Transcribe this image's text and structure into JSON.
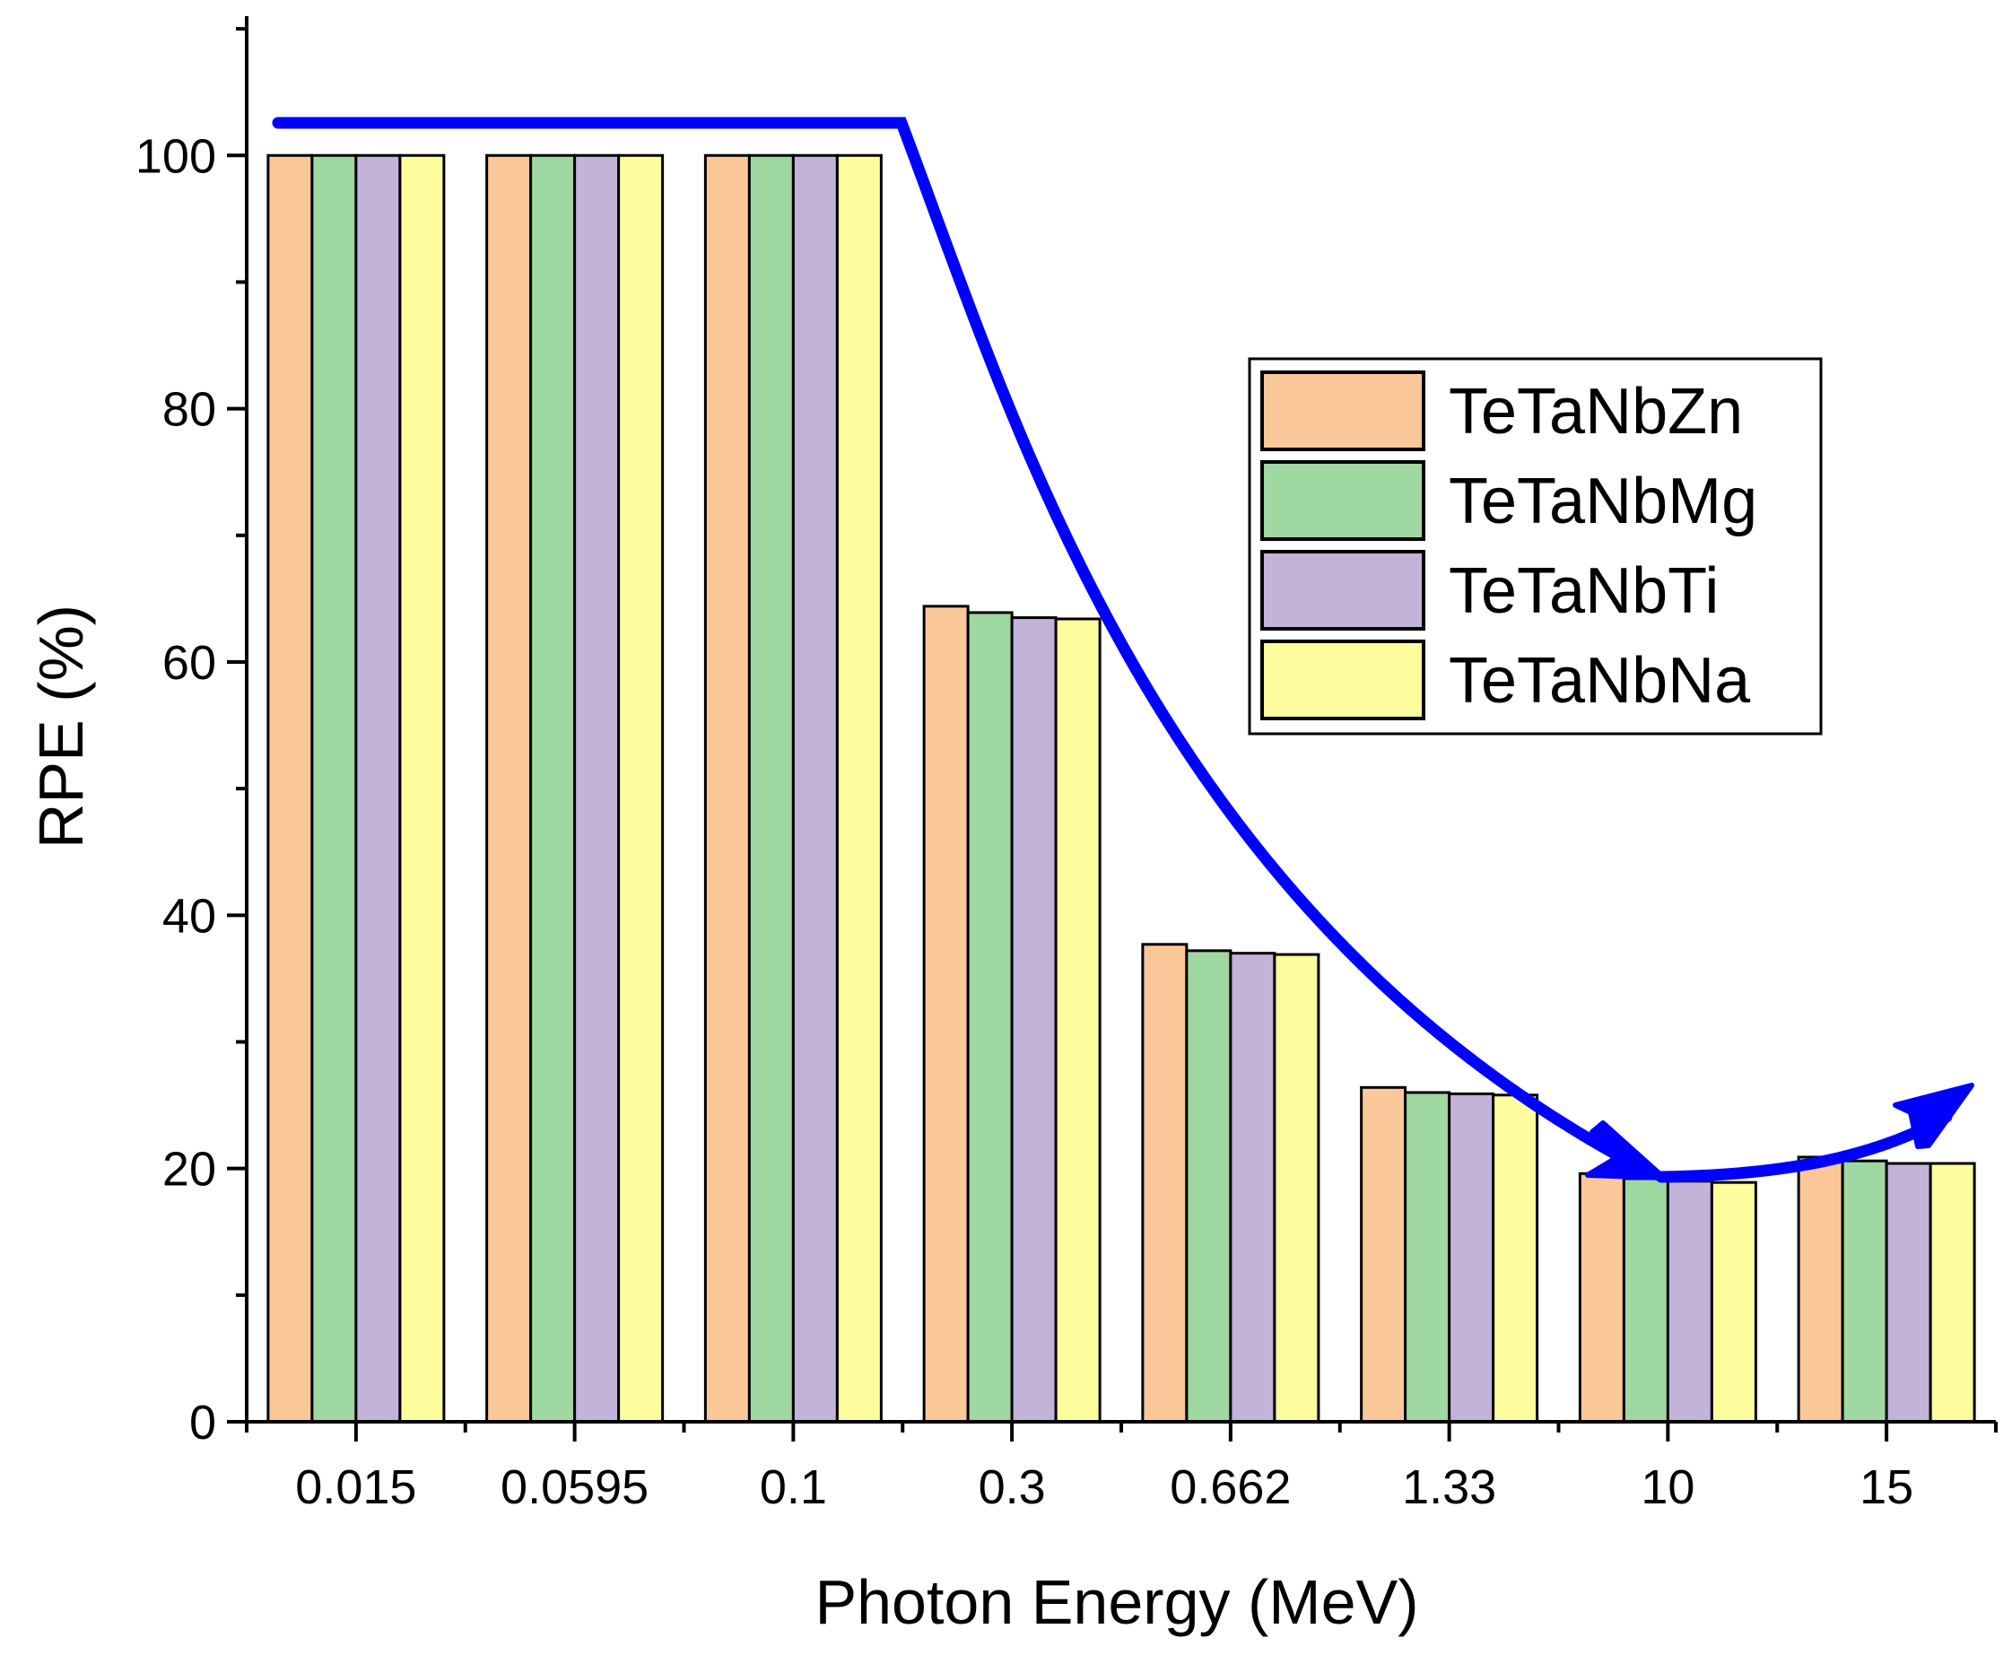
{
  "chart_data": {
    "type": "bar",
    "title": "",
    "xlabel": "Photon Energy (MeV)",
    "ylabel": "RPE (%)",
    "ylim": [
      0,
      111
    ],
    "yticks": [
      0,
      20,
      40,
      60,
      80,
      100
    ],
    "categories": [
      "0.015",
      "0.0595",
      "0.1",
      "0.3",
      "0.662",
      "1.33",
      "10",
      "15"
    ],
    "series": [
      {
        "name": "TeTaNbZn",
        "color": "#FAC898",
        "values": [
          100,
          100,
          100,
          64.4,
          37.7,
          26.4,
          19.6,
          20.9
        ]
      },
      {
        "name": "TeTaNbMg",
        "color": "#9FD8A0",
        "values": [
          100,
          100,
          100,
          63.9,
          37.2,
          26.0,
          19.2,
          20.6
        ]
      },
      {
        "name": "TeTaNbTi",
        "color": "#C3B3D9",
        "values": [
          100,
          100,
          100,
          63.5,
          37.0,
          25.9,
          19.0,
          20.4
        ]
      },
      {
        "name": "TeTaNbNa",
        "color": "#FDFD9D",
        "values": [
          100,
          100,
          100,
          63.4,
          36.9,
          25.8,
          18.9,
          20.4
        ]
      }
    ],
    "legend_position": "top-right",
    "trend_arrow_color": "#0000FF"
  }
}
